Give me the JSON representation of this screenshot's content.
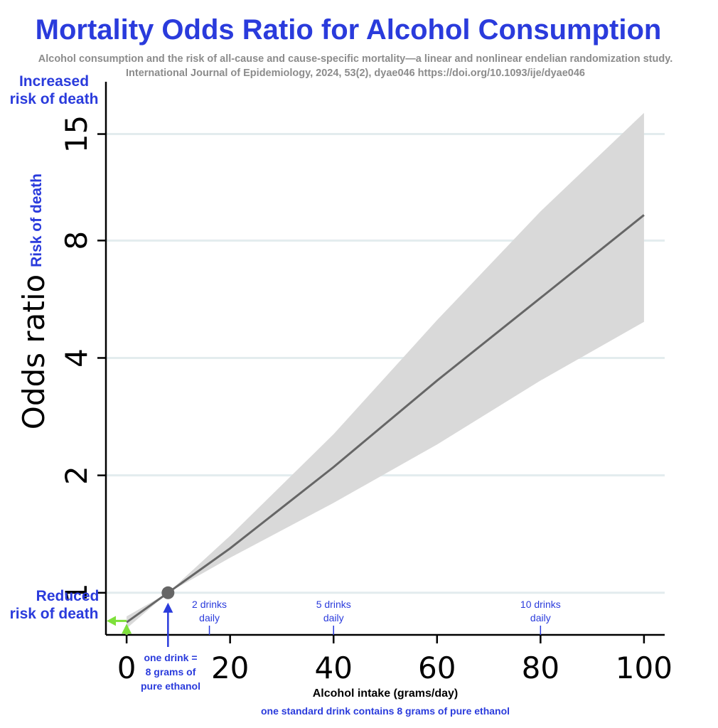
{
  "colors": {
    "title": "#2a3bdc",
    "subtitle": "#8c8c8c",
    "annotation": "#2a3bdc",
    "green": "#7ee03a",
    "line": "#666666",
    "band": "#d9d9d9",
    "grid": "#e3ecee",
    "axis": "#000000"
  },
  "header": {
    "title": "Mortality Odds Ratio for Alcohol Consumption",
    "citation_line1": "Alcohol consumption and the risk of all-cause and cause-specific mortality—a linear and nonlinear endelian randomization study.",
    "citation_line2": "International Journal of Epidemiology, 2024, 53(2), dyae046 https://doi.org/10.1093/ije/dyae046"
  },
  "annotations": {
    "increased_line1": "Increased",
    "increased_line2": "risk of death",
    "risk_of_death": "Risk of death",
    "reduced_line1": "Reduced",
    "reduced_line2": "risk of death",
    "one_drink_line1": "one drink =",
    "one_drink_line2": "8 grams of",
    "one_drink_line3": "pure ethanol",
    "standard_drink_note": "one standard drink contains 8 grams of pure ethanol"
  },
  "drink_markers": [
    {
      "x": 16,
      "line1": "2 drinks",
      "line2": "daily"
    },
    {
      "x": 40,
      "line1": "5 drinks",
      "line2": "daily"
    },
    {
      "x": 80,
      "line1": "10 drinks",
      "line2": "daily"
    }
  ],
  "chart_data": {
    "type": "line",
    "title": "",
    "xlabel": "Alcohol intake (grams/day)",
    "ylabel": "Odds ratio",
    "y_scale": "log",
    "xlim": [
      -4,
      104
    ],
    "ylim": [
      0.78,
      20
    ],
    "x_ticks": [
      0,
      20,
      40,
      60,
      80,
      100
    ],
    "x_tick_labels": [
      "0",
      "20",
      "40",
      "60",
      "80",
      "100"
    ],
    "y_ticks": [
      1,
      2,
      4,
      8,
      15
    ],
    "y_tick_labels": [
      "1",
      "2",
      "4",
      "8",
      "15"
    ],
    "grid": true,
    "reference_point": {
      "x": 8,
      "y": 1
    },
    "series": [
      {
        "x": [
          0,
          8,
          20,
          40,
          60,
          80,
          100
        ],
        "y": [
          0.84,
          1.0,
          1.3,
          2.1,
          3.5,
          5.7,
          9.3
        ],
        "ci_lower": [
          0.81,
          1.0,
          1.23,
          1.7,
          2.4,
          3.5,
          4.95
        ],
        "ci_upper": [
          0.87,
          1.0,
          1.4,
          2.55,
          5.0,
          9.5,
          17.0
        ]
      }
    ]
  }
}
